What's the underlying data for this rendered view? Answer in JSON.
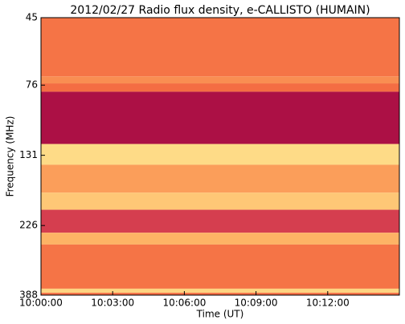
{
  "chart_data": {
    "type": "spectrogram",
    "title": "2012/02/27  Radio flux density, e-CALLISTO (HUMAIN)",
    "x_label": "Time (UT)",
    "y_label": "Frequency (MHz)",
    "xlim": [
      "10:00:00",
      "10:15:00"
    ],
    "xticks": [
      "10:00:00",
      "10:03:00",
      "10:06:00",
      "10:09:00",
      "10:12:00"
    ],
    "ylim": [
      45,
      388
    ],
    "yticks": [
      45,
      76,
      131,
      226,
      388
    ],
    "y_log": true,
    "y_inverted": true,
    "freq_edges": [
      45,
      71,
      75,
      80,
      120,
      141,
      175,
      200,
      239,
      262,
      369,
      381,
      388
    ],
    "intensity": [
      0.42,
      0.5,
      0.4,
      0.05,
      0.78,
      0.55,
      0.7,
      0.2,
      0.62,
      0.42,
      0.75,
      0.4
    ],
    "colormap": [
      "#9e0142",
      "#d53e4f",
      "#f46d43",
      "#fdae61",
      "#fee08b",
      "#ffffbf"
    ]
  }
}
